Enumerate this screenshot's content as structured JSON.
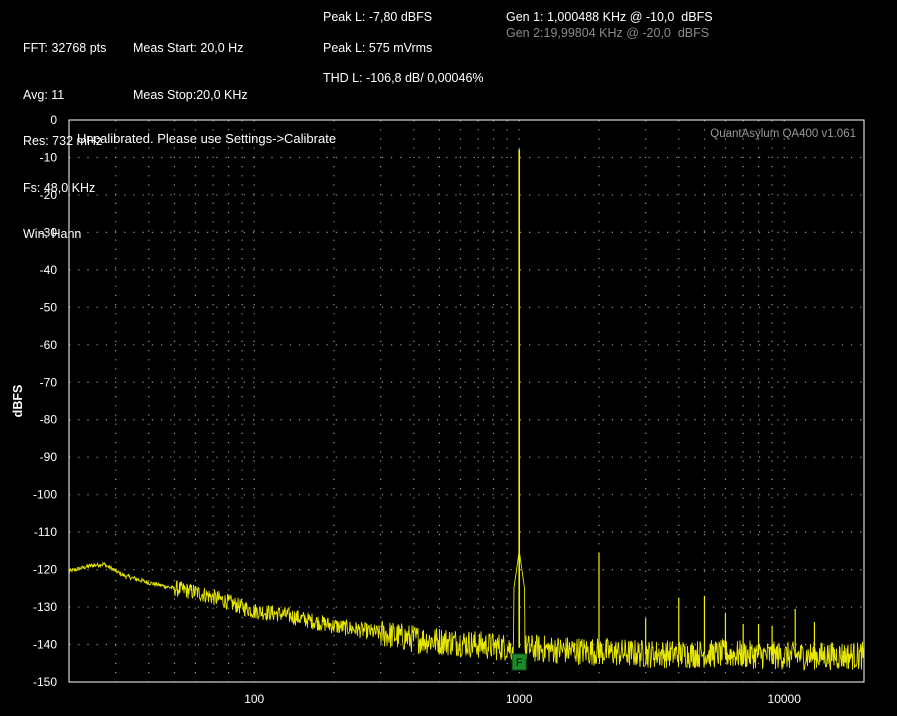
{
  "readouts": {
    "col1": [
      "FFT: 32768 pts",
      "Avg: 11",
      "Res: 732 mHz",
      "Fs: 48,0 KHz",
      "Win: Hann"
    ],
    "col2": [
      "Meas Start: 20,0 Hz",
      "Meas Stop:20,0 KHz"
    ],
    "col3": [
      "Peak L: -7,80 dBFS",
      "Peak L: 575 mVrms",
      "THD L: -106,8 dB/ 0,00046%"
    ],
    "gen1": "Gen 1: 1,000488 KHz @ -10,0  dBFS",
    "gen2": "Gen 2:19,99804 KHz @ -20,0  dBFS"
  },
  "colors": {
    "background": "#000000",
    "trace": "#f2f200",
    "grid": "#c8c8c8",
    "marker": "#1d8a2a"
  },
  "chart_data": {
    "type": "line",
    "xscale": "log",
    "xlim": [
      20,
      20000
    ],
    "ylim": [
      -150,
      0
    ],
    "ylabel": "dBFS",
    "xlabel": "",
    "yticks": [
      "0",
      "-10",
      "-20",
      "-30",
      "-40",
      "-50",
      "-60",
      "-70",
      "-80",
      "-90",
      "-100",
      "-110",
      "-120",
      "-130",
      "-140",
      "-150"
    ],
    "xticks": [
      {
        "value": 100,
        "label": "100"
      },
      {
        "value": 1000,
        "label": "1000"
      },
      {
        "value": 10000,
        "label": "10000"
      }
    ],
    "grid": true,
    "annotation": "Uncalibrated. Please use Settings->Calibrate",
    "brand": "QuantAsylum QA400 v1.061",
    "marker_label": "F",
    "marker_freq": 1000,
    "noise_floor_points": [
      [
        20,
        -120.5
      ],
      [
        24,
        -119.0
      ],
      [
        27,
        -118.5
      ],
      [
        32,
        -121.5
      ],
      [
        40,
        -123.5
      ],
      [
        50,
        -125.0
      ],
      [
        60,
        -126.0
      ],
      [
        75,
        -128.0
      ],
      [
        90,
        -130.0
      ],
      [
        100,
        -131.0
      ],
      [
        130,
        -132.0
      ],
      [
        160,
        -133.5
      ],
      [
        200,
        -135.0
      ],
      [
        300,
        -137.0
      ],
      [
        400,
        -138.5
      ],
      [
        600,
        -139.5
      ],
      [
        800,
        -140.5
      ],
      [
        1500,
        -141.5
      ],
      [
        3000,
        -142.5
      ],
      [
        6000,
        -142.5
      ],
      [
        10000,
        -143.0
      ],
      [
        20000,
        -143.0
      ]
    ],
    "peaks": [
      {
        "freq": 1000,
        "level": -7.8
      },
      {
        "freq": 2000,
        "level": -115.5
      },
      {
        "freq": 3000,
        "level": -133.0
      },
      {
        "freq": 4000,
        "level": -127.5
      },
      {
        "freq": 5000,
        "level": -127.0
      },
      {
        "freq": 6000,
        "level": -131.5
      },
      {
        "freq": 7000,
        "level": -134.5
      },
      {
        "freq": 8000,
        "level": -134.5
      },
      {
        "freq": 9000,
        "level": -135.0
      },
      {
        "freq": 11000,
        "level": -130.5
      },
      {
        "freq": 13000,
        "level": -134.0
      }
    ]
  }
}
